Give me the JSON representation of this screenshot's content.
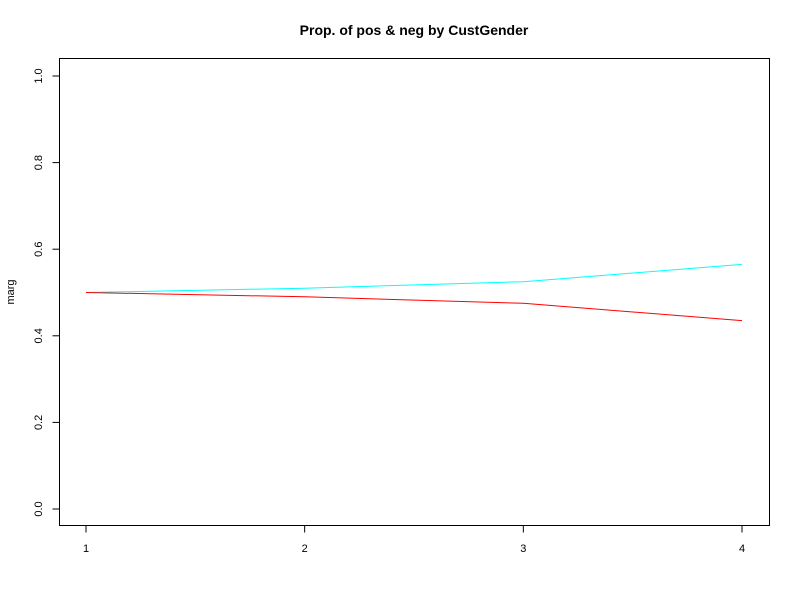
{
  "chart_data": {
    "type": "line",
    "title": "Prop. of pos & neg by CustGender",
    "xlabel": "",
    "ylabel": "marg",
    "x": [
      1,
      2,
      3,
      4
    ],
    "x_ticks": [
      "1",
      "2",
      "3",
      "4"
    ],
    "y_ticks": [
      "0.0",
      "0.2",
      "0.4",
      "0.6",
      "0.8",
      "1.0"
    ],
    "xlim": [
      1,
      4
    ],
    "ylim": [
      0,
      1
    ],
    "grid": false,
    "legend": "none",
    "series": [
      {
        "color": "#00ffff",
        "values": [
          0.5,
          0.51,
          0.525,
          0.565
        ]
      },
      {
        "color": "#ff0000",
        "values": [
          0.5,
          0.49,
          0.475,
          0.435
        ]
      }
    ]
  }
}
